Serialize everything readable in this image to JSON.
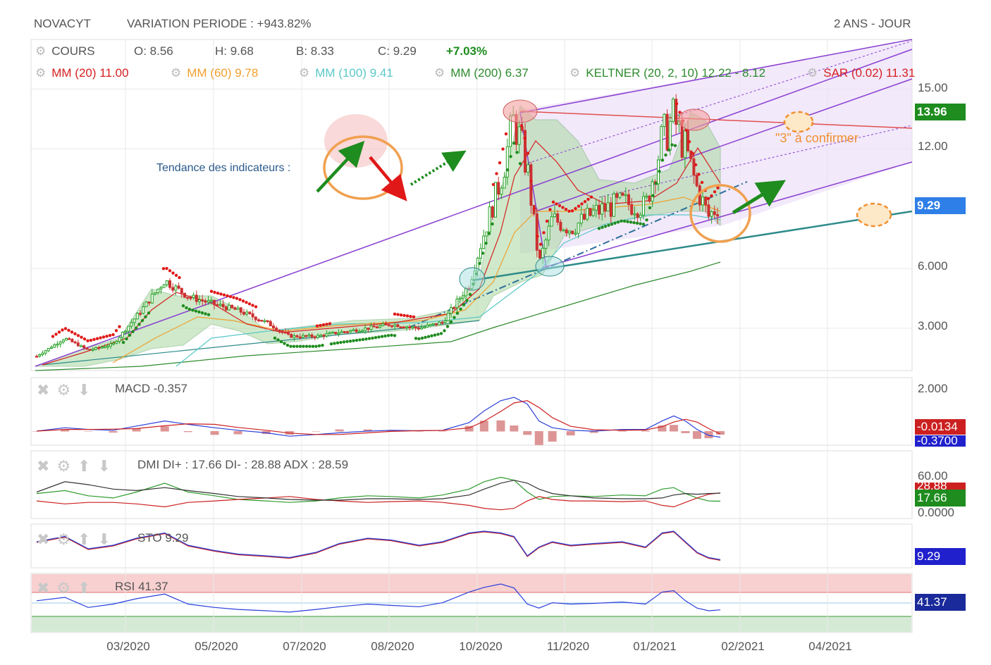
{
  "header": {
    "ticker": "NOVACYT",
    "variation": "VARIATION PERIODE : +943.82%",
    "period": "2 ANS - JOUR"
  },
  "legend": {
    "cours": "COURS",
    "open": "O: 8.56",
    "high": "H: 9.68",
    "low": "B: 8.33",
    "close": "C: 9.29",
    "change": "+7.03%",
    "mm20": "MM (20)  11.00",
    "mm60": "MM (60)  9.78",
    "mm100": "MM (100)  9.41",
    "mm200": "MM (200)  6.37",
    "keltner": "KELTNER (20, 2, 10)  12.22 - 8.12",
    "sar": "SAR (0.02)  11.31"
  },
  "annotations": {
    "trend_label": "Tendance des indicateurs :",
    "confirm_label": "\"3\" à confirmer"
  },
  "colors": {
    "mm20": "#d62020",
    "mm60": "#f0a030",
    "mm100": "#5bc8c8",
    "mm200": "#2e8b2e",
    "sar_up": "#1e8c1e",
    "sar_down": "#e01818",
    "channel": "#8a3fd1",
    "trendline": "#2e8b8b",
    "annotation": "#f0a050",
    "up_candle": "#27a127",
    "down_candle": "#cc3030"
  },
  "indicators": {
    "macd": {
      "label": "MACD",
      "value": "-0.357"
    },
    "dmi": {
      "label": "DMI",
      "value": "DI+ : 17.66 DI- : 28.88 ADX : 28.59"
    },
    "sto": {
      "label": "STO",
      "value": "9.29"
    },
    "rsi": {
      "label": "RSI",
      "value": "41.37"
    }
  },
  "badges": {
    "resistance": "13.96",
    "price": "9.29",
    "macd_hist": "-0.0134",
    "macd_line": "-0.3700",
    "dmi_upper": "28.88",
    "dmi_plus": "17.66",
    "sto": "9.29",
    "rsi": "41.37"
  },
  "chart_data": {
    "type": "candlestick",
    "y_axis_labels": [
      "15.00",
      "12.00",
      "9.29",
      "6.000",
      "3.000"
    ],
    "y_ticks": [
      15,
      12,
      6,
      3
    ],
    "x_axis_labels": [
      "03/2020",
      "05/2020",
      "07/2020",
      "08/2020",
      "10/2020",
      "11/2020",
      "01/2021",
      "02/2021",
      "04/2021"
    ],
    "price_series": [
      [
        "2020-01-15",
        1.6
      ],
      [
        "2020-02-01",
        2.5
      ],
      [
        "2020-02-15",
        1.9
      ],
      [
        "2020-03-01",
        2.2
      ],
      [
        "2020-03-15",
        3.6
      ],
      [
        "2020-04-01",
        5.4
      ],
      [
        "2020-04-15",
        4.6
      ],
      [
        "2020-05-01",
        4.2
      ],
      [
        "2020-05-15",
        3.9
      ],
      [
        "2020-06-01",
        3.3
      ],
      [
        "2020-06-15",
        2.6
      ],
      [
        "2020-07-01",
        2.6
      ],
      [
        "2020-07-15",
        2.8
      ],
      [
        "2020-08-01",
        3.0
      ],
      [
        "2020-08-15",
        3.2
      ],
      [
        "2020-09-01",
        3.0
      ],
      [
        "2020-09-15",
        3.3
      ],
      [
        "2020-10-01",
        5.2
      ],
      [
        "2020-10-10",
        7.8
      ],
      [
        "2020-10-20",
        10.5
      ],
      [
        "2020-10-28",
        13.5
      ],
      [
        "2020-11-05",
        11.0
      ],
      [
        "2020-11-12",
        6.2
      ],
      [
        "2020-11-20",
        8.5
      ],
      [
        "2020-12-01",
        8.0
      ],
      [
        "2020-12-15",
        8.8
      ],
      [
        "2021-01-01",
        9.3
      ],
      [
        "2021-01-15",
        9.1
      ],
      [
        "2021-01-25",
        12.5
      ],
      [
        "2021-02-01",
        13.5
      ],
      [
        "2021-02-08",
        12.0
      ],
      [
        "2021-02-15",
        10.0
      ],
      [
        "2021-02-22",
        8.6
      ],
      [
        "2021-03-01",
        9.29
      ]
    ],
    "series": [
      {
        "name": "MACD",
        "values": [
          0,
          0.2,
          0.1,
          0.05,
          0.3,
          0.6,
          0.4,
          0.2,
          0.05,
          -0.1,
          -0.3,
          -0.2,
          -0.1,
          0,
          0.05,
          0.02,
          0.05,
          0.5,
          1.2,
          1.8,
          2.0,
          1.6,
          0.6,
          0.2,
          0.05,
          0.0,
          0.1,
          0.1,
          0.6,
          0.9,
          0.6,
          0.1,
          -0.25,
          -0.357
        ]
      },
      {
        "name": "DI+",
        "values": [
          28,
          32,
          25,
          22,
          30,
          42,
          30,
          25,
          20,
          18,
          16,
          18,
          22,
          25,
          24,
          22,
          26,
          34,
          44,
          50,
          46,
          30,
          20,
          24,
          25,
          24,
          26,
          25,
          34,
          36,
          28,
          22,
          18,
          17.66
        ]
      },
      {
        "name": "DI-",
        "values": [
          18,
          14,
          16,
          16,
          14,
          10,
          16,
          18,
          20,
          22,
          24,
          20,
          18,
          16,
          17,
          18,
          16,
          12,
          8,
          6,
          8,
          18,
          24,
          20,
          18,
          18,
          17,
          18,
          12,
          10,
          16,
          22,
          27,
          28.88
        ]
      },
      {
        "name": "ADX",
        "values": [
          30,
          44,
          40,
          34,
          32,
          36,
          32,
          28,
          24,
          22,
          20,
          19,
          19,
          21,
          21,
          20,
          21,
          26,
          34,
          42,
          46,
          42,
          34,
          28,
          25,
          22,
          21,
          21,
          22,
          26,
          28,
          27,
          28,
          28.59
        ]
      },
      {
        "name": "STO",
        "values": [
          60,
          75,
          40,
          50,
          70,
          85,
          50,
          35,
          25,
          20,
          15,
          30,
          55,
          70,
          65,
          50,
          60,
          85,
          90,
          85,
          75,
          20,
          45,
          60,
          50,
          55,
          60,
          45,
          85,
          90,
          60,
          30,
          15,
          9.29
        ]
      },
      {
        "name": "RSI",
        "values": [
          55,
          60,
          45,
          50,
          58,
          65,
          50,
          45,
          42,
          40,
          38,
          42,
          46,
          50,
          48,
          46,
          52,
          68,
          75,
          80,
          74,
          50,
          44,
          52,
          50,
          51,
          53,
          50,
          68,
          70,
          55,
          44,
          40,
          41.37
        ]
      }
    ]
  }
}
